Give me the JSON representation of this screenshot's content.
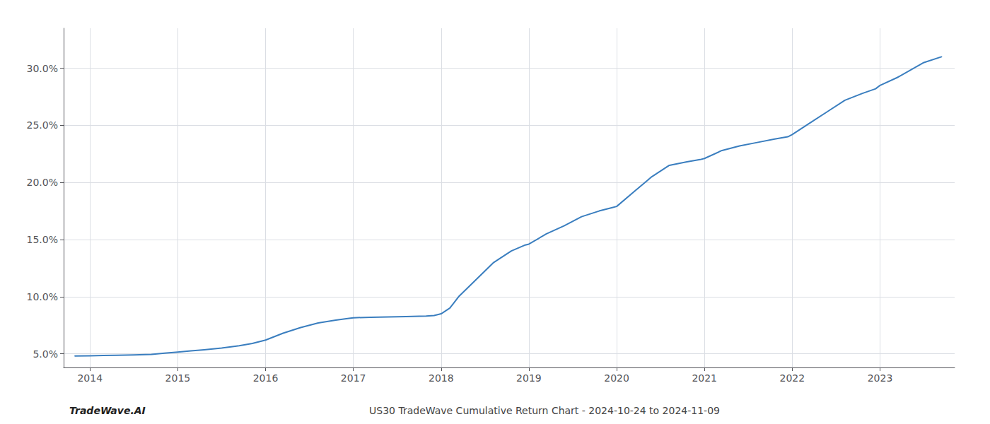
{
  "chart_data": {
    "type": "line",
    "annotations": [
      "TradeWave.AI",
      "US30 TradeWave Cumulative Return Chart - 2024-10-24 to 2024-11-09"
    ],
    "x": [
      2013.83,
      2014.0,
      2014.15,
      2014.3,
      2014.5,
      2014.7,
      2014.85,
      2015.0,
      2015.15,
      2015.3,
      2015.5,
      2015.7,
      2015.85,
      2016.0,
      2016.2,
      2016.4,
      2016.6,
      2016.8,
      2016.95,
      2017.0,
      2017.2,
      2017.4,
      2017.6,
      2017.75,
      2017.83,
      2017.92,
      2018.0,
      2018.1,
      2018.2,
      2018.4,
      2018.6,
      2018.8,
      2018.95,
      2019.0,
      2019.2,
      2019.4,
      2019.6,
      2019.8,
      2019.95,
      2020.0,
      2020.2,
      2020.4,
      2020.6,
      2020.8,
      2020.95,
      2021.0,
      2021.2,
      2021.4,
      2021.6,
      2021.8,
      2021.95,
      2022.0,
      2022.2,
      2022.4,
      2022.6,
      2022.8,
      2022.95,
      2023.0,
      2023.2,
      2023.5,
      2023.7
    ],
    "values": [
      4.8,
      4.82,
      4.85,
      4.87,
      4.9,
      4.95,
      5.05,
      5.15,
      5.25,
      5.35,
      5.5,
      5.7,
      5.9,
      6.2,
      6.8,
      7.3,
      7.7,
      7.95,
      8.1,
      8.15,
      8.2,
      8.22,
      8.25,
      8.28,
      8.3,
      8.35,
      8.5,
      9.0,
      10.0,
      11.5,
      13.0,
      14.0,
      14.5,
      14.6,
      15.5,
      16.2,
      17.0,
      17.5,
      17.8,
      17.9,
      19.2,
      20.5,
      21.5,
      21.8,
      22.0,
      22.1,
      22.8,
      23.2,
      23.5,
      23.8,
      24.0,
      24.2,
      25.2,
      26.2,
      27.2,
      27.8,
      28.2,
      28.5,
      29.2,
      30.5,
      31.0
    ],
    "color": "#3a7ebf",
    "xlim": [
      2013.7,
      2023.85
    ],
    "xticks": [
      2014,
      2015,
      2016,
      2017,
      2018,
      2019,
      2020,
      2021,
      2022,
      2023
    ],
    "ylim": [
      3.8,
      33.5
    ],
    "yticks": [
      {
        "value": 5.0,
        "label": "5.0%"
      },
      {
        "value": 10.0,
        "label": "10.0%"
      },
      {
        "value": 15.0,
        "label": "15.0%"
      },
      {
        "value": 20.0,
        "label": "20.0%"
      },
      {
        "value": 25.0,
        "label": "25.0%"
      },
      {
        "value": 30.0,
        "label": "30.0%"
      }
    ],
    "grid": true
  }
}
